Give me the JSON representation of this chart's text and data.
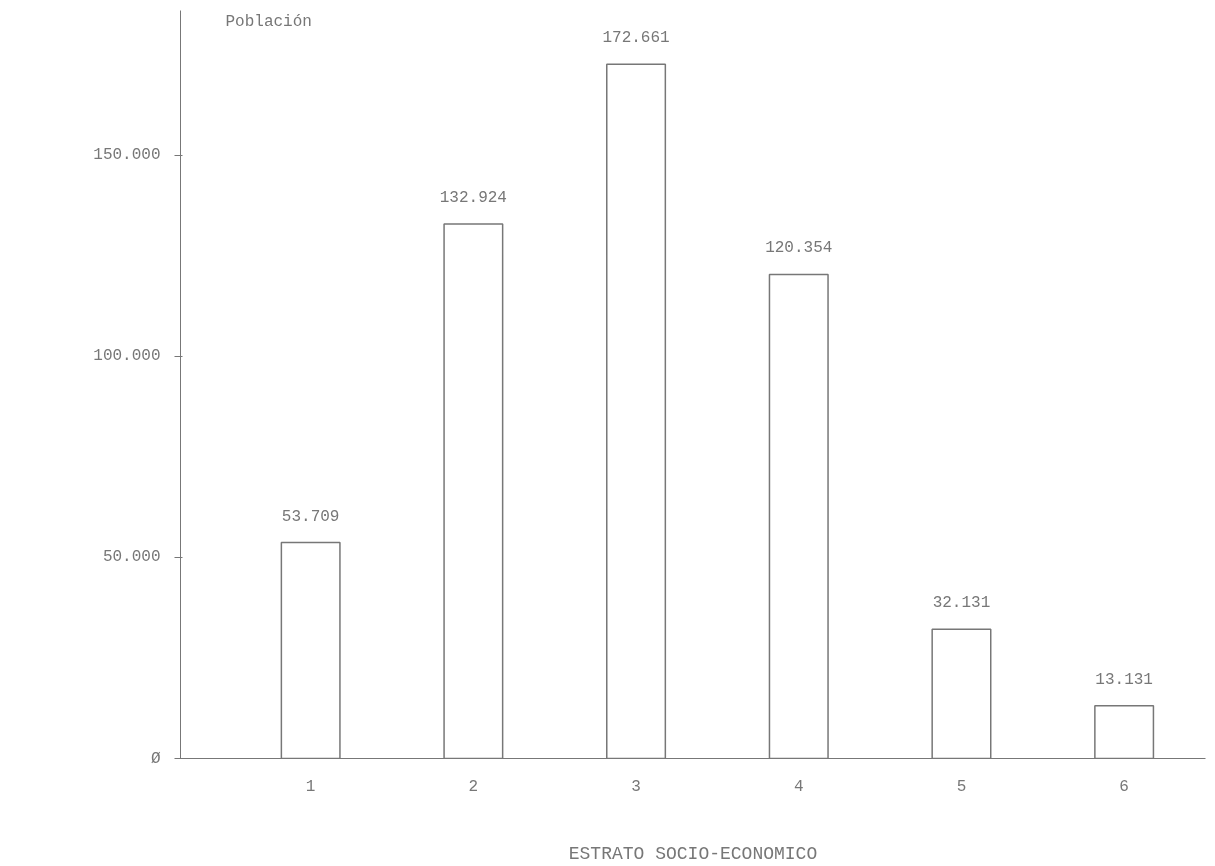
{
  "chart_data": {
    "type": "bar",
    "xlabel": "ESTRATO SOCIO-ECONOMICO",
    "ylabel": "Población",
    "categories": [
      "1",
      "2",
      "3",
      "4",
      "5",
      "6"
    ],
    "values": [
      53709,
      132924,
      172661,
      120354,
      32131,
      13131
    ],
    "value_labels": [
      "53.709",
      "132.924",
      "172.661",
      "120.354",
      "32.131",
      "13.131"
    ],
    "color": "#ffffff",
    "ylim": [
      0,
      186000
    ],
    "yticks": [
      {
        "value": 0,
        "label": "Ø"
      },
      {
        "value": 50000,
        "label": "50.000"
      },
      {
        "value": 100000,
        "label": "100.000"
      },
      {
        "value": 150000,
        "label": "150.000"
      }
    ],
    "grid": false
  }
}
